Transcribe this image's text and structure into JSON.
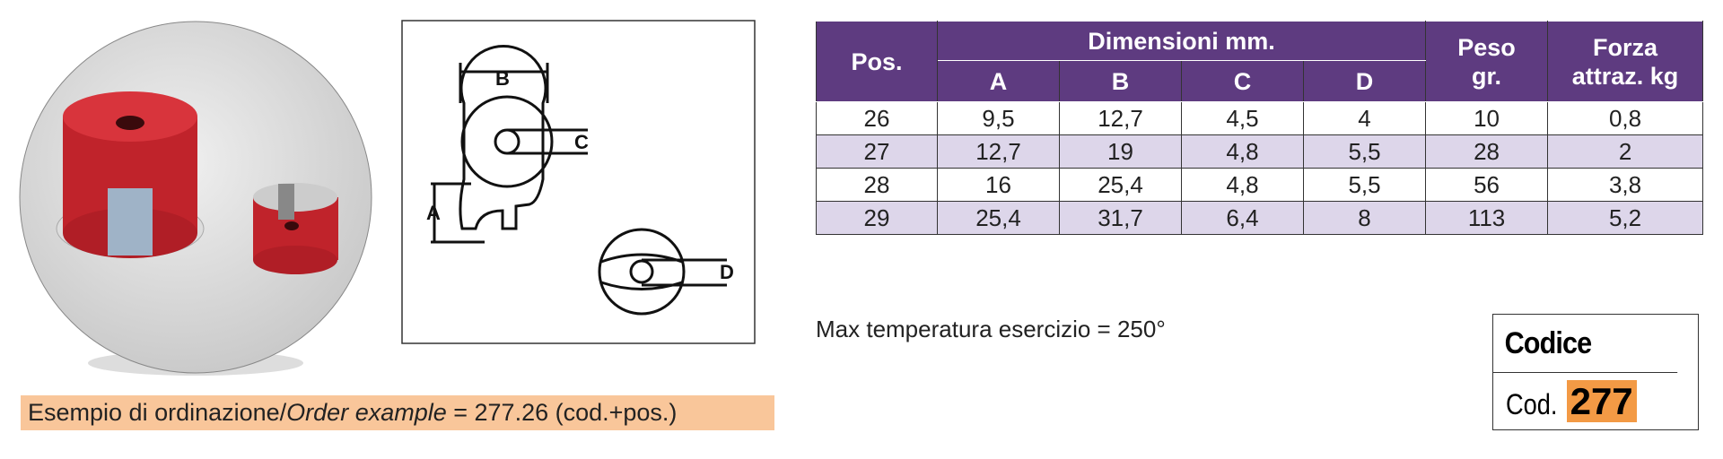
{
  "diagram_labels": [
    "B",
    "C",
    "A",
    "D"
  ],
  "table": {
    "header": {
      "pos": "Pos.",
      "dimensions": "Dimensioni mm.",
      "sub": [
        "A",
        "B",
        "C",
        "D"
      ],
      "weight": [
        "Peso",
        "gr."
      ],
      "force": [
        "Forza",
        "attraz. kg"
      ]
    },
    "rows": [
      [
        "26",
        "9,5",
        "12,7",
        "4,5",
        "4",
        "10",
        "0,8"
      ],
      [
        "27",
        "12,7",
        "19",
        "4,8",
        "5,5",
        "28",
        "2"
      ],
      [
        "28",
        "16",
        "25,4",
        "4,8",
        "5,5",
        "56",
        "3,8"
      ],
      [
        "29",
        "25,4",
        "31,7",
        "6,4",
        "8",
        "113",
        "5,2"
      ]
    ]
  },
  "note": "Max temperatura esercizio = 250°",
  "order_example": [
    "Esempio di ordinazione/",
    "Order example",
    " = 277.26 (cod.+pos.)"
  ],
  "code_box": {
    "title": "Codice",
    "prefix": "Cod.",
    "code": "277"
  }
}
